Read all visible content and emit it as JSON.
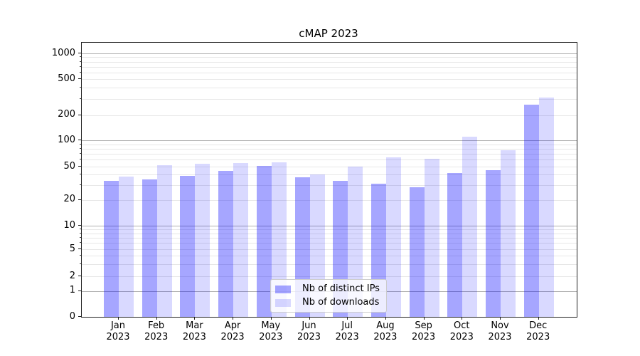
{
  "figure": {
    "title": "cMAP 2023"
  },
  "chart_data": {
    "type": "bar",
    "title": "cMAP 2023",
    "categories": [
      "Jan",
      "Feb",
      "Mar",
      "Apr",
      "May",
      "Jun",
      "Jul",
      "Aug",
      "Sep",
      "Oct",
      "Nov",
      "Dec"
    ],
    "category_year": "2023",
    "series": [
      {
        "name": "Nb of distinct IPs",
        "color": "rgba(0,0,255,0.35)",
        "values": [
          34,
          35,
          39,
          44,
          51,
          37,
          34,
          31,
          28,
          42,
          45,
          262
        ]
      },
      {
        "name": "Nb of downloads",
        "color": "rgba(0,0,255,0.15)",
        "values": [
          38,
          52,
          54,
          55,
          56,
          40,
          50,
          64,
          61,
          110,
          77,
          310
        ]
      }
    ],
    "xlabel": "",
    "ylabel": "",
    "yscale": "symlog",
    "ylim": [
      0,
      1000
    ],
    "y_ticks": [
      0,
      1,
      2,
      5,
      10,
      20,
      50,
      100,
      200,
      500,
      1000
    ],
    "grid": true,
    "gridline_major_color": "#b0b0b0",
    "gridline_minor_color": "#e7e7e7",
    "legend_position": "lower center"
  }
}
